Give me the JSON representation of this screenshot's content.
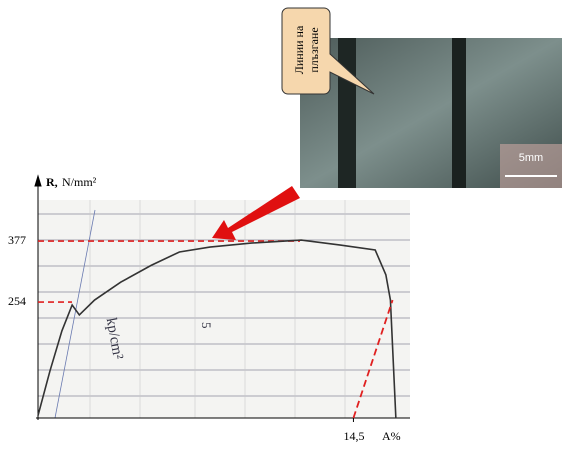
{
  "photo": {
    "callout": [
      "Линии на",
      "плъзгане"
    ],
    "scale_bar": "5mm"
  },
  "chart_data": {
    "type": "line",
    "y_label": "R,",
    "y_unit": "N/mm²",
    "x_label": "A%",
    "annotations": [
      "kp/cm²",
      "5"
    ],
    "xlim": [
      0,
      17.1
    ],
    "ylim": [
      20,
      470
    ],
    "xticks": [
      {
        "value": 14.5,
        "label": "14,5"
      }
    ],
    "yticks": [
      254,
      377
    ],
    "series": [
      {
        "color": "#333333",
        "dash": false,
        "x": [
          0,
          0.55,
          1.1,
          1.57,
          1.9,
          2.6,
          3.8,
          5.2,
          6.5,
          7.9,
          9.8,
          12.1,
          13.9,
          15.5,
          15.99,
          16.2,
          16.45
        ],
        "values": [
          25,
          115,
          196,
          248,
          228,
          258,
          294,
          328,
          355,
          365,
          373,
          379,
          369,
          359,
          309,
          258,
          20
        ]
      },
      {
        "color": "#e02020",
        "dash": true,
        "x": [
          14.5,
          16.3
        ],
        "values": [
          20,
          258
        ]
      }
    ]
  }
}
